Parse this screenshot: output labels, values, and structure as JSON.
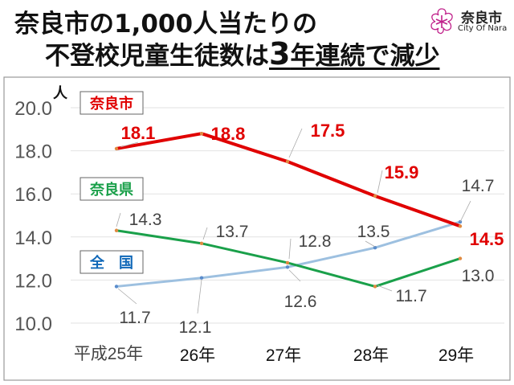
{
  "title": {
    "line1": "奈良市の1,000人当たりの",
    "line2_a": "不登校児童生徒数は",
    "line2_b": "3",
    "line2_c": "年連続で減少"
  },
  "logo": {
    "name": "奈良市",
    "english": "City Of Nara",
    "emblem": "cherry-blossom-emblem",
    "color": "#c0208a"
  },
  "chart_data": {
    "type": "line",
    "ylabel": "人",
    "ylim": [
      10.0,
      20.0
    ],
    "yticks": [
      "10.0",
      "12.0",
      "14.0",
      "16.0",
      "18.0",
      "20.0"
    ],
    "grid": true,
    "categories": [
      "平成25年",
      "26年",
      "27年",
      "28年",
      "29年"
    ],
    "series": [
      {
        "name": "奈良市",
        "color": "#e00000",
        "values": [
          18.1,
          18.8,
          17.5,
          15.9,
          14.5
        ],
        "labels": [
          "18.1",
          "18.8",
          "17.5",
          "15.9",
          "14.5"
        ]
      },
      {
        "name": "奈良県",
        "color": "#1aa04a",
        "values": [
          14.3,
          13.7,
          12.8,
          11.7,
          13.0
        ],
        "labels": [
          "14.3",
          "13.7",
          "12.8",
          "11.7",
          "13.0"
        ]
      },
      {
        "name": "全　国",
        "color": "#9dc0e0",
        "legend_color": "#1068b8",
        "values": [
          11.7,
          12.1,
          12.6,
          13.5,
          14.7
        ],
        "labels": [
          "11.7",
          "12.1",
          "12.6",
          "13.5",
          "14.7"
        ]
      }
    ]
  }
}
